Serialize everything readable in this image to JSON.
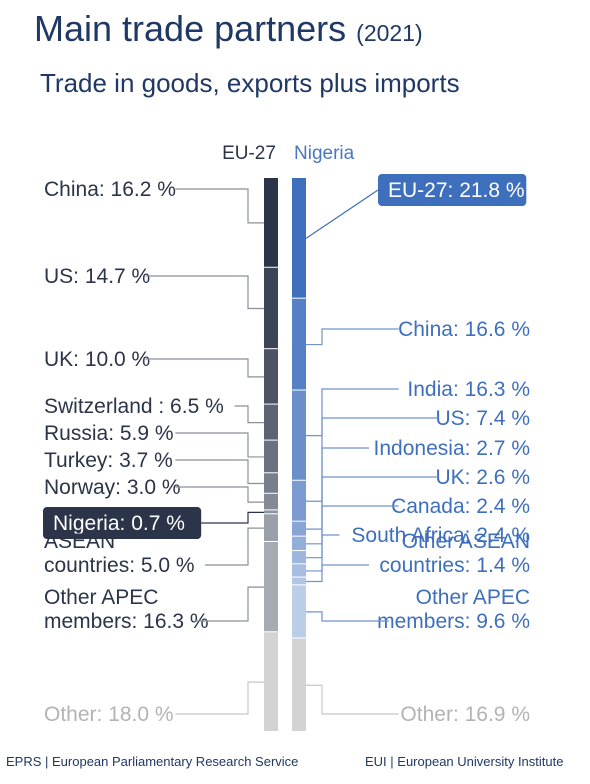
{
  "title": "Main trade partners",
  "title_year": "(2021)",
  "subtitle": "Trade in goods, exports plus imports",
  "footer_left": "EPRS | European Parliamentary Research Service",
  "footer_right": "EUI | European University Institute",
  "chart_data": {
    "type": "bar",
    "stacked": true,
    "unit": "%",
    "series": [
      {
        "name": "EU-27",
        "color": "#4d5568",
        "segments": [
          {
            "label": "China",
            "value": 16.2,
            "text": "China: 16.2 %",
            "color": "#2b3448"
          },
          {
            "label": "US",
            "value": 14.7,
            "text": "US: 14.7 %",
            "color": "#3c4458"
          },
          {
            "label": "UK",
            "value": 10.0,
            "text": "UK: 10.0 %",
            "color": "#4b5365"
          },
          {
            "label": "Switzerland",
            "value": 6.5,
            "text": "Switzerland : 6.5 %",
            "color": "#5c6474"
          },
          {
            "label": "Russia",
            "value": 5.9,
            "text": "Russia: 5.9 %",
            "color": "#6a7180"
          },
          {
            "label": "Turkey",
            "value": 3.7,
            "text": "Turkey: 3.7 %",
            "color": "#777e8c"
          },
          {
            "label": "Norway",
            "value": 3.0,
            "text": "Norway: 3.0 %",
            "color": "#838996"
          },
          {
            "label": "Nigeria",
            "value": 0.7,
            "text": "Nigeria: 0.7 %",
            "color": "#8e94a0",
            "highlight": true
          },
          {
            "label": "ASEAN countries",
            "value": 5.0,
            "text": [
              "ASEAN",
              "countries: 5.0 %"
            ],
            "color": "#9aa0aa"
          },
          {
            "label": "Other APEC members",
            "value": 16.3,
            "text": [
              "Other APEC",
              "members: 16.3 %"
            ],
            "color": "#a5aab3"
          },
          {
            "label": "Other",
            "value": 18.0,
            "text": "Other: 18.0 %",
            "color": "#d3d3d3",
            "muted": true
          }
        ]
      },
      {
        "name": "Nigeria",
        "color": "#4a78c0",
        "segments": [
          {
            "label": "EU-27",
            "value": 21.8,
            "text": "EU-27: 21.8 %",
            "color": "#3e6fbd",
            "highlight": true
          },
          {
            "label": "China",
            "value": 16.6,
            "text": "China: 16.6 %",
            "color": "#5680c5"
          },
          {
            "label": "India",
            "value": 16.3,
            "text": "India: 16.3 %",
            "color": "#6b8fcb"
          },
          {
            "label": "US",
            "value": 7.4,
            "text": "US: 7.4 %",
            "color": "#7c9cd1"
          },
          {
            "label": "Indonesia",
            "value": 2.7,
            "text": "Indonesia: 2.7 %",
            "color": "#88a5d5"
          },
          {
            "label": "UK",
            "value": 2.6,
            "text": "UK: 2.6 %",
            "color": "#93aed9"
          },
          {
            "label": "Canada",
            "value": 2.4,
            "text": "Canada: 2.4 %",
            "color": "#9db6dd"
          },
          {
            "label": "South Africa",
            "value": 2.4,
            "text": "South Africa: 2.4 %",
            "color": "#a7bee1"
          },
          {
            "label": "Other ASEAN countries",
            "value": 1.4,
            "text": [
              "Other ASEAN",
              "countries: 1.4 %"
            ],
            "color": "#b1c6e5"
          },
          {
            "label": "Other APEC members",
            "value": 9.6,
            "text": [
              "Other APEC",
              "members: 9.6 %"
            ],
            "color": "#bccde8"
          },
          {
            "label": "Other",
            "value": 16.9,
            "text": "Other: 16.9 %",
            "color": "#d3d3d3",
            "muted": true
          }
        ]
      }
    ]
  }
}
